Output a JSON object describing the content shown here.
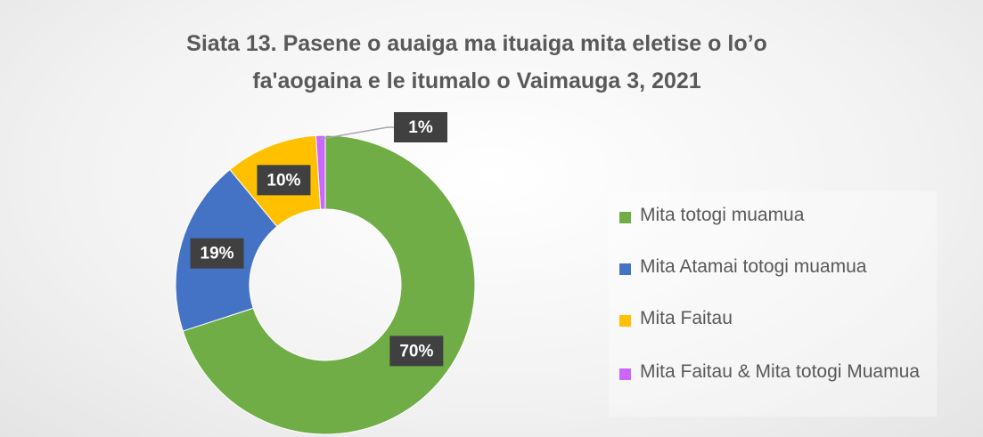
{
  "chart_data": {
    "type": "donut",
    "title": "Siata 13. Pasene o auaiga ma ituaiga mita eletise o lo’o fa'aogaina e le itumalo o Vaimauga 3, 2021",
    "categories": [
      "Mita totogi muamua",
      "Mita Atamai totogi muamua",
      "Mita Faitau",
      "Mita Faitau & Mita totogi Muamua"
    ],
    "values": [
      70,
      19,
      10,
      1
    ],
    "value_labels": [
      "70%",
      "19%",
      "10%",
      "1%"
    ],
    "colors": [
      "#70ad47",
      "#4472c4",
      "#ffc000",
      "#cc66ff"
    ],
    "legend": "right"
  }
}
